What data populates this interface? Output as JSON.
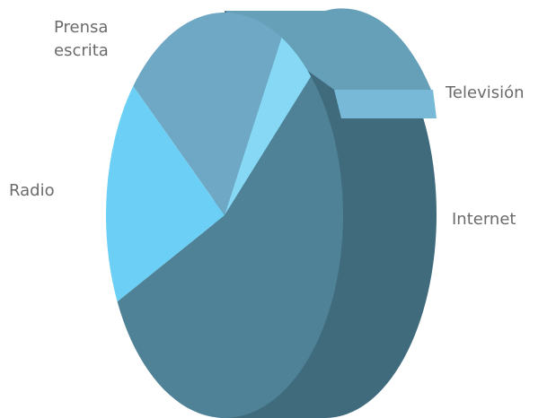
{
  "chart_data": {
    "type": "pie",
    "categories": [
      "Prensa escrita",
      "Televisión",
      "Internet",
      "Radio"
    ],
    "values": [
      22,
      5,
      55,
      18
    ],
    "colors": [
      "#6fa8c4",
      "#87d8f5",
      "#4f8296",
      "#6ccff5"
    ]
  }
}
